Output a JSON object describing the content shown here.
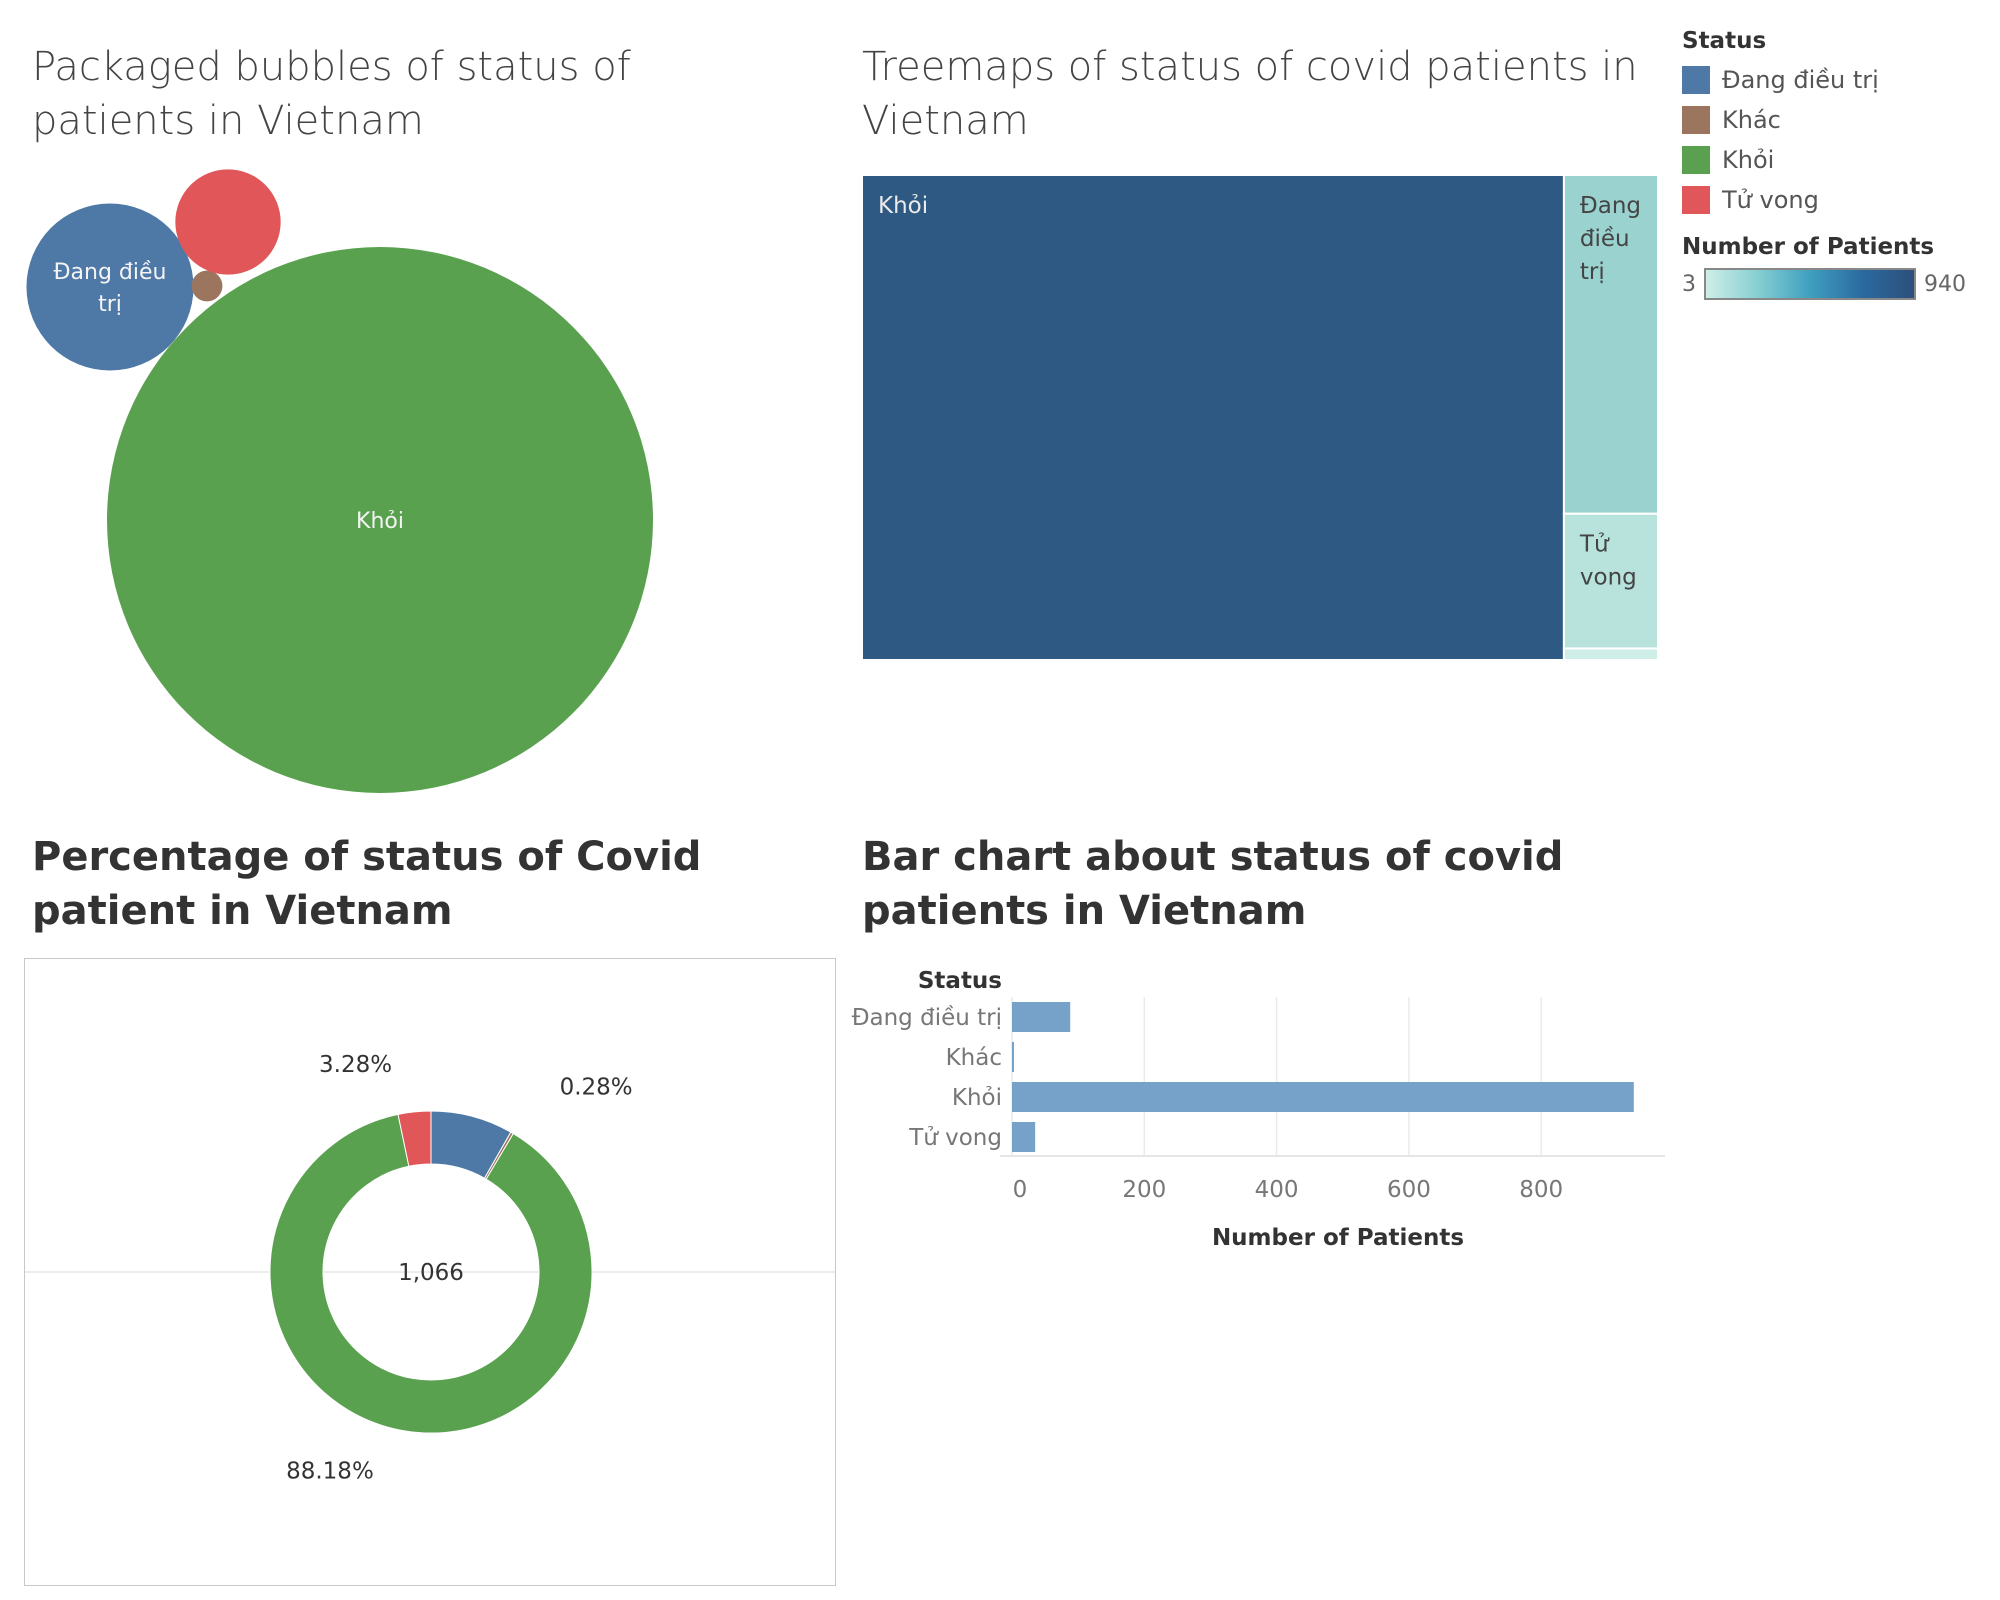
{
  "titles": {
    "bubbles": "Packaged bubbles of status of patients in Vietnam",
    "treemap": "Treemaps of status of covid patients in Vietnam",
    "donut": "Percentage of status of Covid patient in Vietnam",
    "bar": "Bar chart about status of covid patients in Vietnam"
  },
  "legend": {
    "title": "Status",
    "items": [
      {
        "label": "Đang điều trị",
        "color": "#4e79a7"
      },
      {
        "label": "Khác",
        "color": "#9c755f"
      },
      {
        "label": "Khỏi",
        "color": "#59a14f"
      },
      {
        "label": "Tử vong",
        "color": "#e15759"
      }
    ],
    "gradient_title": "Number of Patients",
    "gradient_min": "3",
    "gradient_max": "940"
  },
  "chart_data": [
    {
      "type": "bubble",
      "title": "Packaged bubbles of status of patients in Vietnam",
      "categories": [
        "Đang điều trị",
        "Khác",
        "Khỏi",
        "Tử vong"
      ],
      "values": [
        88,
        3,
        940,
        35
      ],
      "labels": [
        "Đang điều trị",
        "",
        "Khỏi",
        ""
      ]
    },
    {
      "type": "treemap",
      "title": "Treemaps of status of covid patients in Vietnam",
      "categories": [
        "Khỏi",
        "Đang điều trị",
        "Tử vong",
        "Khác"
      ],
      "values": [
        940,
        88,
        35,
        3
      ],
      "labels": [
        "Khỏi",
        "Đang điều trị",
        "Tử vong",
        ""
      ]
    },
    {
      "type": "pie",
      "title": "Percentage of status of Covid patient in Vietnam",
      "categories": [
        "Đang điều trị",
        "Khác",
        "Khỏi",
        "Tử vong"
      ],
      "values": [
        88,
        3,
        940,
        35
      ],
      "percent_labels": [
        "",
        "0.28%",
        "88.18%",
        "3.28%"
      ],
      "center_label": "1,066"
    },
    {
      "type": "bar",
      "title": "Bar chart about status of covid patients in Vietnam",
      "categories": [
        "Đang điều trị",
        "Khác",
        "Khỏi",
        "Tử vong"
      ],
      "values": [
        88,
        3,
        940,
        35
      ],
      "ylabel": "Status",
      "xlabel": "Number of Patients",
      "xlim": [
        0,
        1000
      ],
      "xticks": [
        "0",
        "200",
        "400",
        "600",
        "800"
      ],
      "xtick_values": [
        0,
        200,
        400,
        600,
        800
      ],
      "bar_color": "#76a1c8",
      "grid": true
    }
  ]
}
